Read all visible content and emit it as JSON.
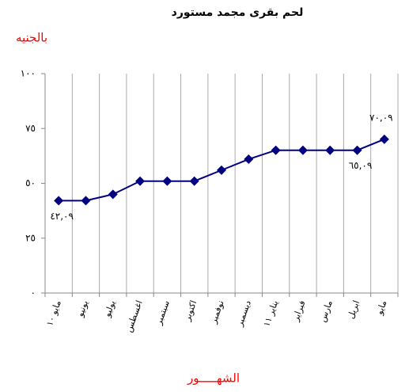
{
  "chart_data": {
    "type": "line",
    "title": "لحم بقرى مجمد مستورد",
    "y_label": "بالجنيه",
    "x_label": "الشهـــــور",
    "categories": [
      "مايو ١٠",
      "يونيو",
      "يوليو",
      "اغسطس",
      "سبتمبر",
      "اكتوبر",
      "نوفمبر",
      "ديسمبر",
      "يناير ١١",
      "فبراير",
      "مارس",
      "ابريل",
      "مايو"
    ],
    "values": [
      42.09,
      42.09,
      45,
      51,
      51,
      51,
      56,
      61,
      65.09,
      65.09,
      65.09,
      65.09,
      70.09
    ],
    "value_labels": [
      "٤٢,٠٩",
      null,
      null,
      null,
      null,
      null,
      null,
      null,
      null,
      null,
      null,
      "٦٥,٠٩",
      "٧٠,٠٩"
    ],
    "color": "#000080",
    "ylim": [
      0,
      100
    ],
    "yticks": [
      {
        "value": 0,
        "label": "٠"
      },
      {
        "value": 25,
        "label": "٢٥"
      },
      {
        "value": 50,
        "label": "٥٠"
      },
      {
        "value": 75,
        "label": "٧٥"
      },
      {
        "value": 100,
        "label": "١٠٠"
      }
    ],
    "grid": "x"
  }
}
